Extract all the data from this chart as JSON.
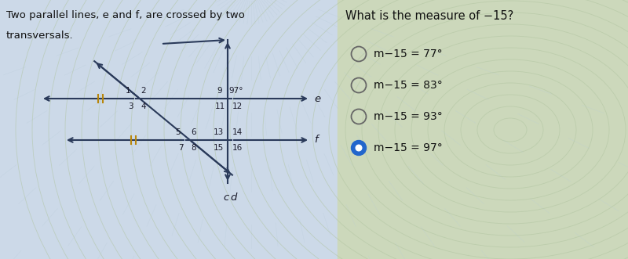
{
  "bg_color_left": "#ccd9e8",
  "bg_color_right": "#d4e0c8",
  "fig_width": 8.0,
  "fig_height": 3.31,
  "left_text_line1": "Two parallel lines, e and f, are crossed by two",
  "left_text_line2": "transversals.",
  "question_text": "What is the measure of −15?",
  "options": [
    {
      "label": "m−15 = 77°",
      "selected": false
    },
    {
      "label": "m−15 = 83°",
      "selected": false
    },
    {
      "label": "m−15 = 93°",
      "selected": false
    },
    {
      "label": "m−15 = 97°",
      "selected": true
    }
  ],
  "angle_label": "97°",
  "line_e_label": "e",
  "line_f_label": "f",
  "trans_c_label": "c",
  "trans_d_label": "d",
  "line_color": "#2a3a5a",
  "arrow_color": "#2a3a5a",
  "tick_color": "#b8860b",
  "ripple_color_left": "#aabbcc",
  "ripple_color_right": "#b0c8a8"
}
